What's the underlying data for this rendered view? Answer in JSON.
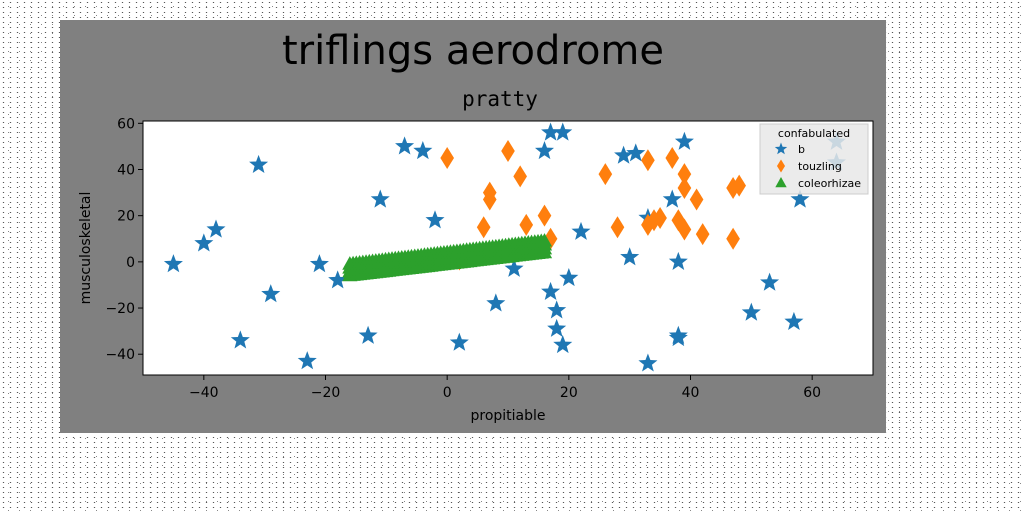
{
  "chart_data": {
    "type": "scatter",
    "title": "triflings aerodrome",
    "subtitle": "pratty",
    "xlabel": "propitiable",
    "ylabel": "musculoskeletal",
    "xlim": [
      -50,
      70
    ],
    "ylim": [
      -49,
      61
    ],
    "xticks": [
      -40,
      -20,
      0,
      20,
      40,
      60
    ],
    "yticks": [
      -40,
      -20,
      0,
      20,
      40,
      60
    ],
    "legend": {
      "title": "confabulated",
      "placement": "top-right"
    },
    "series": [
      {
        "name": "b",
        "marker": "star",
        "color": "#1f77b4",
        "points": [
          [
            -45,
            -1
          ],
          [
            -40,
            8
          ],
          [
            -38,
            14
          ],
          [
            -31,
            42
          ],
          [
            -34,
            -34
          ],
          [
            -29,
            -14
          ],
          [
            -23,
            -43
          ],
          [
            -21,
            -1
          ],
          [
            -18,
            -8
          ],
          [
            -13,
            -32
          ],
          [
            -11,
            27
          ],
          [
            -7,
            50
          ],
          [
            -4,
            48
          ],
          [
            -2,
            18
          ],
          [
            2,
            -35
          ],
          [
            8,
            -18
          ],
          [
            11,
            -3
          ],
          [
            16,
            48
          ],
          [
            17,
            56
          ],
          [
            19,
            56
          ],
          [
            17,
            -13
          ],
          [
            18,
            -21
          ],
          [
            18,
            -29
          ],
          [
            19,
            -36
          ],
          [
            20,
            -7
          ],
          [
            22,
            13
          ],
          [
            29,
            46
          ],
          [
            31,
            47
          ],
          [
            30,
            2
          ],
          [
            33,
            -44
          ],
          [
            33,
            19
          ],
          [
            37,
            27
          ],
          [
            38,
            0
          ],
          [
            38,
            -32
          ],
          [
            38,
            -33
          ],
          [
            39,
            52
          ],
          [
            50,
            -22
          ],
          [
            53,
            -9
          ],
          [
            57,
            -26
          ],
          [
            58,
            27
          ],
          [
            64,
            52
          ],
          [
            64,
            43
          ]
        ]
      },
      {
        "name": "touzling",
        "marker": "thin-diamond",
        "color": "#ff7f0e",
        "points": [
          [
            0,
            45
          ],
          [
            7,
            27
          ],
          [
            7,
            30
          ],
          [
            6,
            15
          ],
          [
            10,
            48
          ],
          [
            12,
            37
          ],
          [
            13,
            16
          ],
          [
            16,
            20
          ],
          [
            17,
            10
          ],
          [
            26,
            38
          ],
          [
            28,
            15
          ],
          [
            33,
            44
          ],
          [
            33,
            16
          ],
          [
            34,
            18
          ],
          [
            35,
            19
          ],
          [
            37,
            45
          ],
          [
            38,
            18
          ],
          [
            39,
            14
          ],
          [
            39,
            38
          ],
          [
            39,
            32
          ],
          [
            41,
            27
          ],
          [
            42,
            12
          ],
          [
            47,
            10
          ],
          [
            47,
            32
          ],
          [
            48,
            33
          ],
          [
            2,
            1
          ]
        ]
      },
      {
        "name": "coleorhizae",
        "marker": "triangle",
        "color": "#2ca02c",
        "band": {
          "x": [
            -16,
            16
          ],
          "y_low": [
            -6,
            4
          ],
          "y_high": [
            -1,
            9
          ]
        }
      }
    ]
  }
}
